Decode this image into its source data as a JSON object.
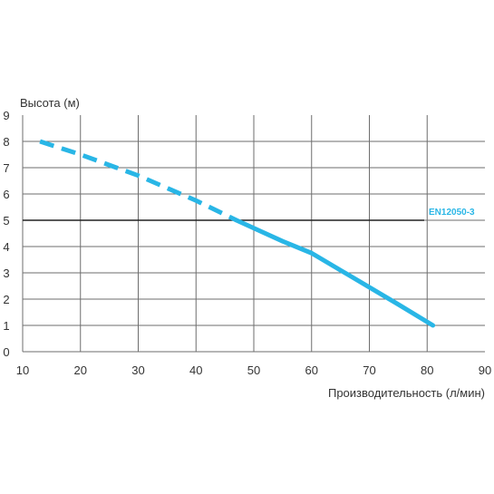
{
  "chart_data": {
    "type": "line",
    "xlabel": "Производительность (л/мин)",
    "ylabel": "Высота (м)",
    "xlim": [
      10,
      90
    ],
    "ylim": [
      0,
      9
    ],
    "x_ticks": [
      "10",
      "20",
      "30",
      "40",
      "50",
      "60",
      "70",
      "80",
      "90"
    ],
    "y_ticks": [
      "0",
      "1",
      "2",
      "3",
      "4",
      "5",
      "6",
      "7",
      "8",
      "9"
    ],
    "grid": true,
    "series": [
      {
        "style": "dashed",
        "color": "#29b6e6",
        "x": [
          13,
          20,
          30,
          40,
          47
        ],
        "y": [
          8.0,
          7.5,
          6.7,
          5.75,
          5.0
        ]
      },
      {
        "style": "solid",
        "color": "#29b6e6",
        "x": [
          47,
          55,
          60,
          65,
          70,
          75,
          81
        ],
        "y": [
          5.0,
          4.2,
          3.75,
          3.1,
          2.45,
          1.8,
          1.0
        ]
      }
    ],
    "reference_line": {
      "y": 5,
      "label": "EN12050-3",
      "color": "#222222"
    }
  }
}
